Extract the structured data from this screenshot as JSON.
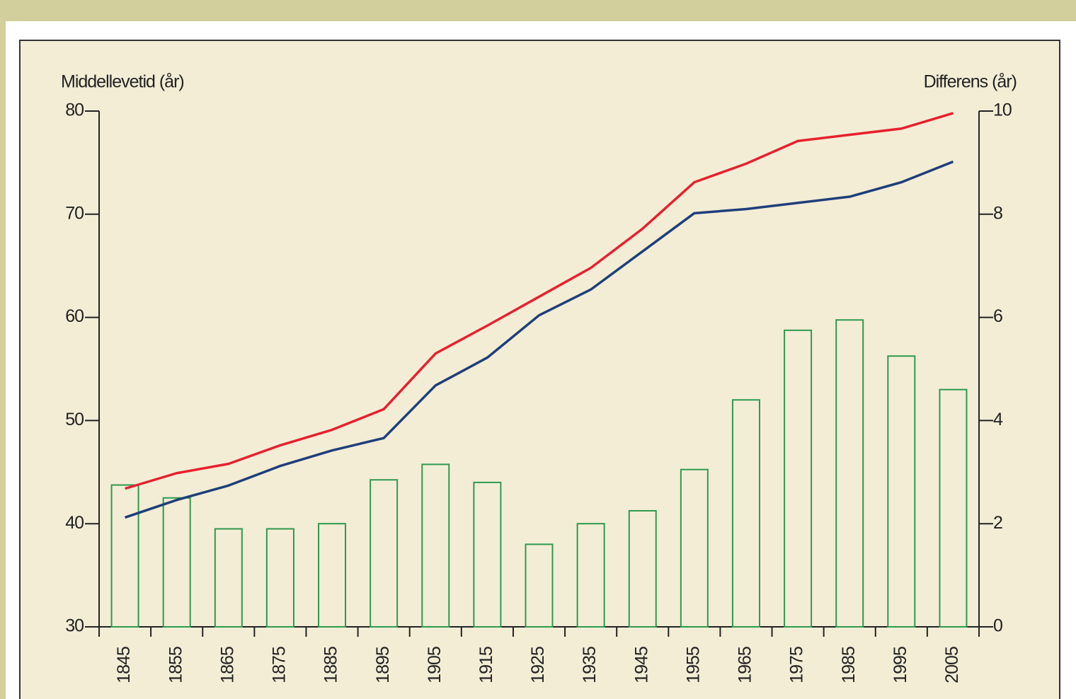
{
  "chart_data": {
    "type": "bar",
    "ylabel": "Middellevetid (år)",
    "y2label": "Differens (år)",
    "categories": [
      "1845",
      "1855",
      "1865",
      "1875",
      "1885",
      "1895",
      "1905",
      "1915",
      "1925",
      "1935",
      "1945",
      "1955",
      "1965",
      "1975",
      "1985",
      "1995",
      "2005"
    ],
    "ylim": [
      30,
      80
    ],
    "yticks": [
      30,
      40,
      50,
      60,
      70,
      80
    ],
    "y2lim": [
      0,
      10
    ],
    "y2ticks": [
      0,
      2,
      4,
      6,
      8,
      10
    ],
    "series": [
      {
        "type": "bar",
        "axis": "y2",
        "color": "#2e9a4e",
        "values": [
          2.75,
          2.5,
          1.9,
          1.9,
          2.0,
          2.85,
          3.15,
          2.8,
          1.6,
          2.0,
          2.25,
          3.05,
          4.4,
          5.75,
          5.95,
          5.25,
          4.6
        ]
      },
      {
        "type": "line",
        "color": "#e8202e",
        "values": [
          43.4,
          44.9,
          45.8,
          47.6,
          49.1,
          51.1,
          56.5,
          59.2,
          62.0,
          64.8,
          68.6,
          73.1,
          74.9,
          77.1,
          77.7,
          78.3,
          79.8
        ]
      },
      {
        "type": "line",
        "color": "#1f3f7a",
        "values": [
          40.6,
          42.3,
          43.7,
          45.6,
          47.1,
          48.3,
          53.4,
          56.1,
          60.2,
          62.7,
          66.4,
          70.1,
          70.5,
          71.1,
          71.7,
          73.1,
          75.1
        ]
      }
    ]
  }
}
